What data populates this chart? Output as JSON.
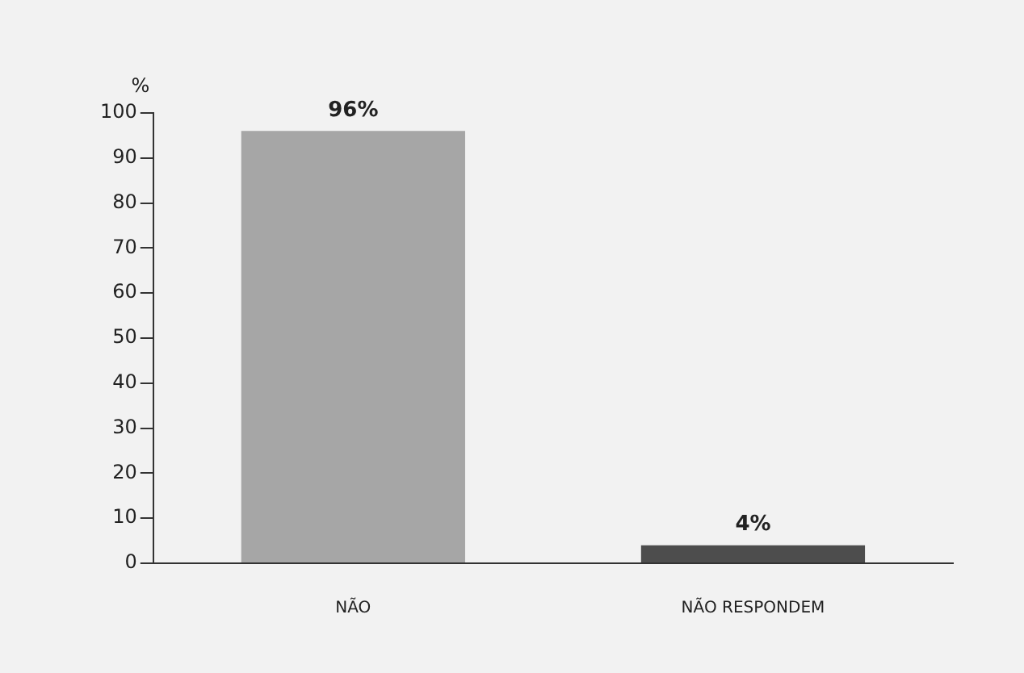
{
  "chart_data": {
    "type": "bar",
    "ylabel": "%",
    "categories": [
      "NÃO",
      "NÃO RESPONDEM"
    ],
    "values": [
      96,
      4
    ],
    "colors": [
      "#a6a6a6",
      "#4d4d4d"
    ],
    "value_labels": [
      "96%",
      "4%"
    ],
    "ylim": [
      0,
      100
    ],
    "yticks": [
      0,
      10,
      20,
      30,
      40,
      50,
      60,
      70,
      80,
      90,
      100
    ]
  }
}
